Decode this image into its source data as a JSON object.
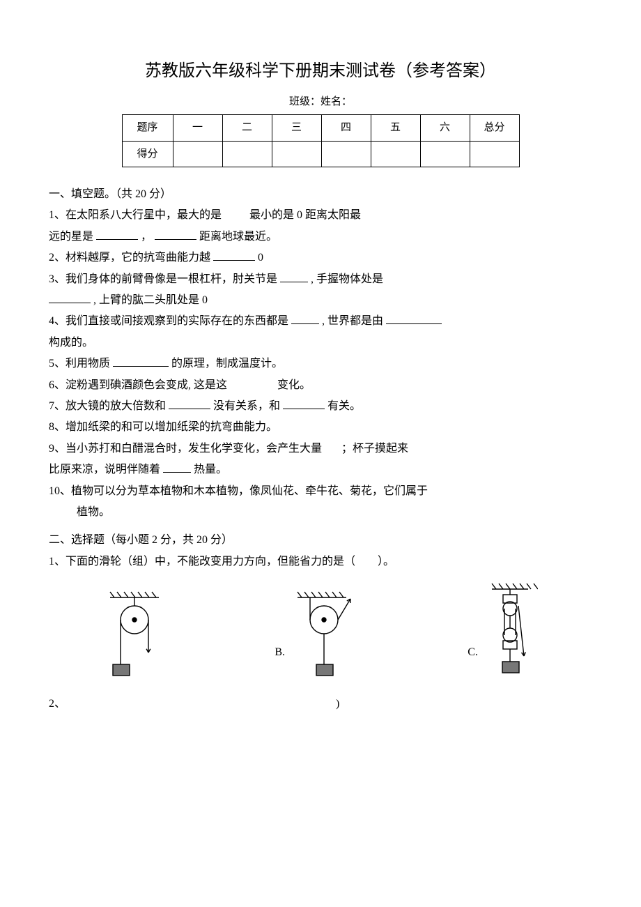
{
  "title": "苏教版六年级科学下册期末测试卷（参考答案）",
  "subtitle": "班级：姓名：",
  "scoreTable": {
    "rowLabels": [
      "题序",
      "得分"
    ],
    "cols": [
      "一",
      "二",
      "三",
      "四",
      "五",
      "六",
      "总分"
    ]
  },
  "section1": {
    "heading": "一、填空题。（共 20 分）",
    "q1a": "1、在太阳系八大行星中，最大的是",
    "q1b": "最小的是 0 距离太阳最",
    "q1c": "远的星是",
    "q1d": "，",
    "q1e": "距离地球最近。",
    "q2a": "2、材料越厚，它的抗弯曲能力越",
    "q2b": "0",
    "q3a": "3、我们身体的前臂骨像是一根杠杆，肘关节是",
    "q3b": ", 手握物体处是",
    "q3c": ", 上臂的肱二头肌处是 0",
    "q4a": "4、我们直接或间接观察到的实际存在的东西都是",
    "q4b": ", 世界都是由",
    "q4c": "构成的。",
    "q5a": "5、利用物质",
    "q5b": "的原理，制成温度计。",
    "q6a": "6、淀粉遇到碘酒颜色会变成, 这是这",
    "q6b": "变化。",
    "q7a": "7、放大镜的放大倍数和",
    "q7b": "没有关系，和",
    "q7c": "有关。",
    "q8": "8、增加纸梁的和可以增加纸梁的抗弯曲能力。",
    "q9a": "9、当小苏打和白醋混合时，发生化学变化，会产生大量",
    "q9b": "；杯子摸起来",
    "q9c": "比原来凉，说明伴随着",
    "q9d": "热量。",
    "q10a": "10、植物可以分为草本植物和木本植物，像凤仙花、牵牛花、菊花，它们属于",
    "q10b": "植物。"
  },
  "section2": {
    "heading": "二、选择题（每小题 2 分，共 20 分）",
    "q1": "1、下面的滑轮（组）中，不能改变用力方向，但能省力的是（　　）。",
    "labels": {
      "b": "B.",
      "c": "C."
    },
    "q2": "2、",
    "q2tail": ")"
  },
  "svg": {
    "stroke": "#000000",
    "strokeWidth": 1.4,
    "hatch": {
      "count": 7,
      "len": 8,
      "gap": 10
    }
  }
}
